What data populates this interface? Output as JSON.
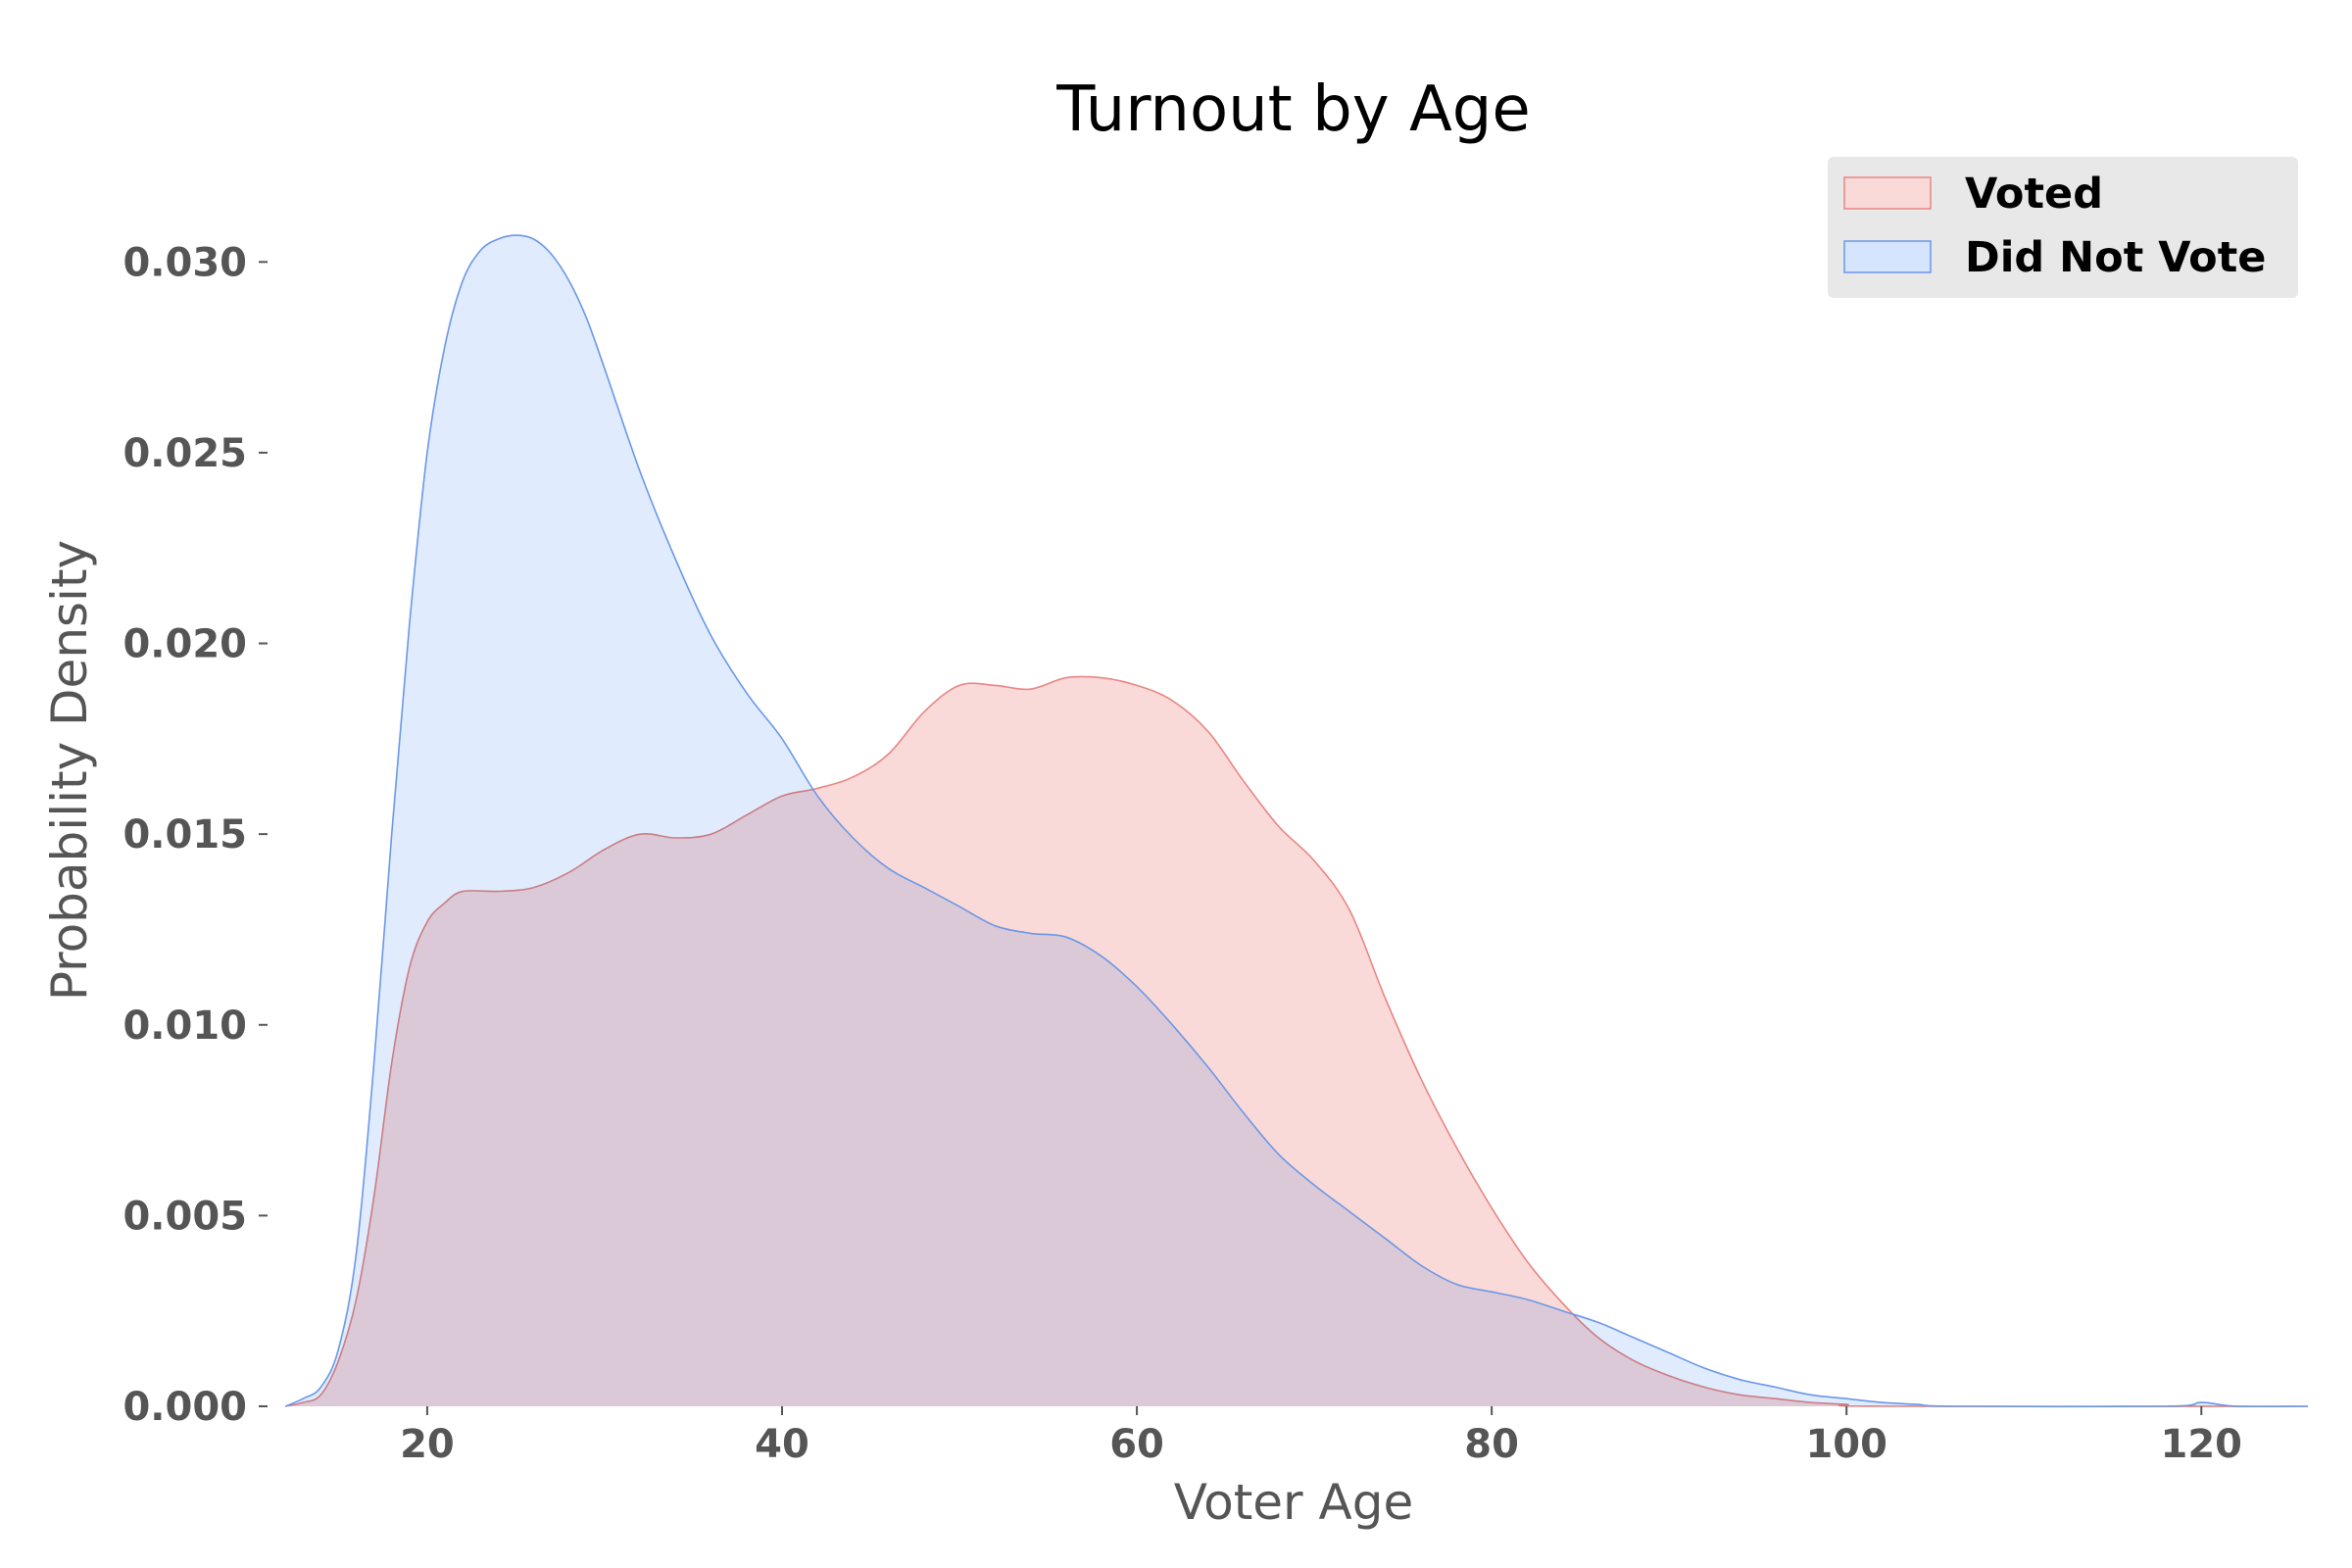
{
  "chart_data": {
    "type": "area",
    "title": "Turnout by Age",
    "xlabel": "Voter Age",
    "ylabel": "Probability Density",
    "xlim": [
      11,
      127
    ],
    "ylim": [
      0,
      0.0325
    ],
    "xticks": [
      20,
      40,
      60,
      80,
      100,
      120
    ],
    "xtick_labels": [
      "20",
      "40",
      "60",
      "80",
      "100",
      "120"
    ],
    "yticks": [
      0,
      0.005,
      0.01,
      0.015,
      0.02,
      0.025,
      0.03
    ],
    "ytick_labels": [
      "0.000",
      "0.005",
      "0.010",
      "0.015",
      "0.020",
      "0.025",
      "0.030"
    ],
    "grid": false,
    "legend_position": "top-right",
    "series": [
      {
        "name": "Voted",
        "fill_color": "#fadad8",
        "line_color": "#e88683",
        "points": [
          [
            12,
            0
          ],
          [
            13,
            0.0001
          ],
          [
            14,
            0.0003
          ],
          [
            15,
            0.0012
          ],
          [
            16,
            0.0028
          ],
          [
            17,
            0.0055
          ],
          [
            18,
            0.009
          ],
          [
            19,
            0.0115
          ],
          [
            20,
            0.0127
          ],
          [
            21,
            0.0132
          ],
          [
            22,
            0.0135
          ],
          [
            24,
            0.0135
          ],
          [
            26,
            0.0136
          ],
          [
            28,
            0.014
          ],
          [
            30,
            0.0146
          ],
          [
            32,
            0.015
          ],
          [
            34,
            0.0149
          ],
          [
            36,
            0.015
          ],
          [
            38,
            0.0155
          ],
          [
            40,
            0.016
          ],
          [
            42,
            0.0162
          ],
          [
            44,
            0.0165
          ],
          [
            46,
            0.0171
          ],
          [
            48,
            0.0182
          ],
          [
            50,
            0.0189
          ],
          [
            52,
            0.0189
          ],
          [
            54,
            0.0188
          ],
          [
            56,
            0.0191
          ],
          [
            58,
            0.0191
          ],
          [
            60,
            0.0189
          ],
          [
            62,
            0.0185
          ],
          [
            64,
            0.0177
          ],
          [
            66,
            0.0164
          ],
          [
            68,
            0.0152
          ],
          [
            70,
            0.0143
          ],
          [
            72,
            0.013
          ],
          [
            74,
            0.0107
          ],
          [
            76,
            0.0086
          ],
          [
            78,
            0.0068
          ],
          [
            80,
            0.0052
          ],
          [
            82,
            0.0038
          ],
          [
            84,
            0.0027
          ],
          [
            86,
            0.0018
          ],
          [
            88,
            0.0012
          ],
          [
            90,
            0.0008
          ],
          [
            92,
            0.0005
          ],
          [
            94,
            0.0003
          ],
          [
            96,
            0.0002
          ],
          [
            98,
            0.0001
          ],
          [
            100,
            5e-05
          ],
          [
            102,
            0
          ],
          [
            126,
            0
          ]
        ]
      },
      {
        "name": "Did Not Vote",
        "fill_color": "#d5e5fd",
        "line_color": "#6a97e8",
        "points": [
          [
            12,
            0
          ],
          [
            13,
            0.0002
          ],
          [
            14,
            0.0005
          ],
          [
            15,
            0.0015
          ],
          [
            16,
            0.004
          ],
          [
            17,
            0.009
          ],
          [
            18,
            0.015
          ],
          [
            19,
            0.0205
          ],
          [
            20,
            0.025
          ],
          [
            21,
            0.0278
          ],
          [
            22,
            0.0295
          ],
          [
            23,
            0.0303
          ],
          [
            24,
            0.0306
          ],
          [
            25,
            0.0307
          ],
          [
            26,
            0.0306
          ],
          [
            27,
            0.0302
          ],
          [
            28,
            0.0295
          ],
          [
            29,
            0.0285
          ],
          [
            30,
            0.0272
          ],
          [
            32,
            0.0245
          ],
          [
            34,
            0.0222
          ],
          [
            36,
            0.0202
          ],
          [
            38,
            0.0187
          ],
          [
            40,
            0.0175
          ],
          [
            42,
            0.016
          ],
          [
            44,
            0.0149
          ],
          [
            46,
            0.0141
          ],
          [
            48,
            0.0136
          ],
          [
            50,
            0.0131
          ],
          [
            52,
            0.0126
          ],
          [
            54,
            0.0124
          ],
          [
            56,
            0.0123
          ],
          [
            58,
            0.0118
          ],
          [
            60,
            0.011
          ],
          [
            62,
            0.01
          ],
          [
            64,
            0.0089
          ],
          [
            66,
            0.0077
          ],
          [
            68,
            0.0066
          ],
          [
            70,
            0.0058
          ],
          [
            72,
            0.0051
          ],
          [
            74,
            0.0044
          ],
          [
            76,
            0.0037
          ],
          [
            78,
            0.0032
          ],
          [
            80,
            0.003
          ],
          [
            82,
            0.0028
          ],
          [
            84,
            0.0025
          ],
          [
            86,
            0.0022
          ],
          [
            88,
            0.0018
          ],
          [
            90,
            0.0014
          ],
          [
            92,
            0.001
          ],
          [
            94,
            0.0007
          ],
          [
            96,
            0.0005
          ],
          [
            98,
            0.0003
          ],
          [
            100,
            0.0002
          ],
          [
            102,
            0.0001
          ],
          [
            104,
            5e-05
          ],
          [
            106,
            0
          ],
          [
            118,
            0
          ],
          [
            120,
            0.0001
          ],
          [
            122,
            0
          ],
          [
            126,
            0
          ]
        ]
      }
    ]
  }
}
